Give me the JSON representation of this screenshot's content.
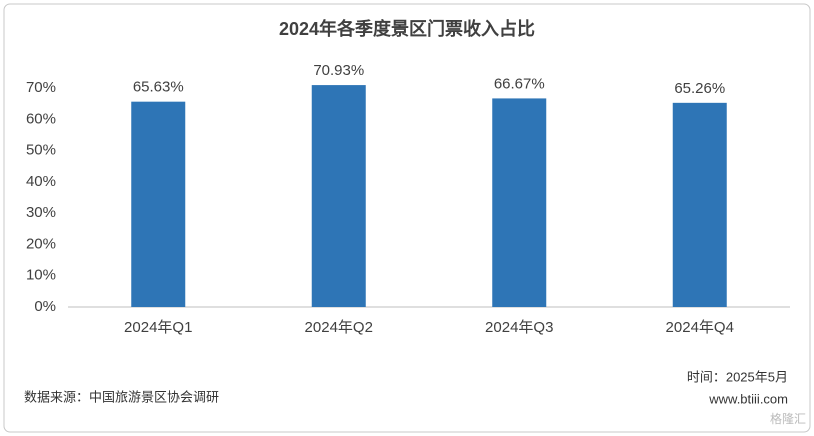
{
  "chart_data": {
    "type": "bar",
    "title": "2024年各季度景区门票收入占比",
    "categories": [
      "2024年Q1",
      "2024年Q2",
      "2024年Q3",
      "2024年Q4"
    ],
    "values": [
      65.63,
      70.93,
      66.67,
      65.26
    ],
    "value_labels": [
      "65.63%",
      "70.93%",
      "66.67%",
      "65.26%"
    ],
    "color": "#2e75b6",
    "ylim": [
      0,
      70
    ],
    "yticks": [
      {
        "value": 0,
        "label": "0%"
      },
      {
        "value": 10,
        "label": "10%"
      },
      {
        "value": 20,
        "label": "20%"
      },
      {
        "value": 30,
        "label": "30%"
      },
      {
        "value": 40,
        "label": "40%"
      },
      {
        "value": 50,
        "label": "50%"
      },
      {
        "value": 60,
        "label": "60%"
      },
      {
        "value": 70,
        "label": "70%"
      }
    ],
    "grid": false,
    "source": "数据来源：中国旅游景区协会调研",
    "date": "时间：2025年5月",
    "website": "www.btiii.com",
    "watermark": "格隆汇"
  }
}
